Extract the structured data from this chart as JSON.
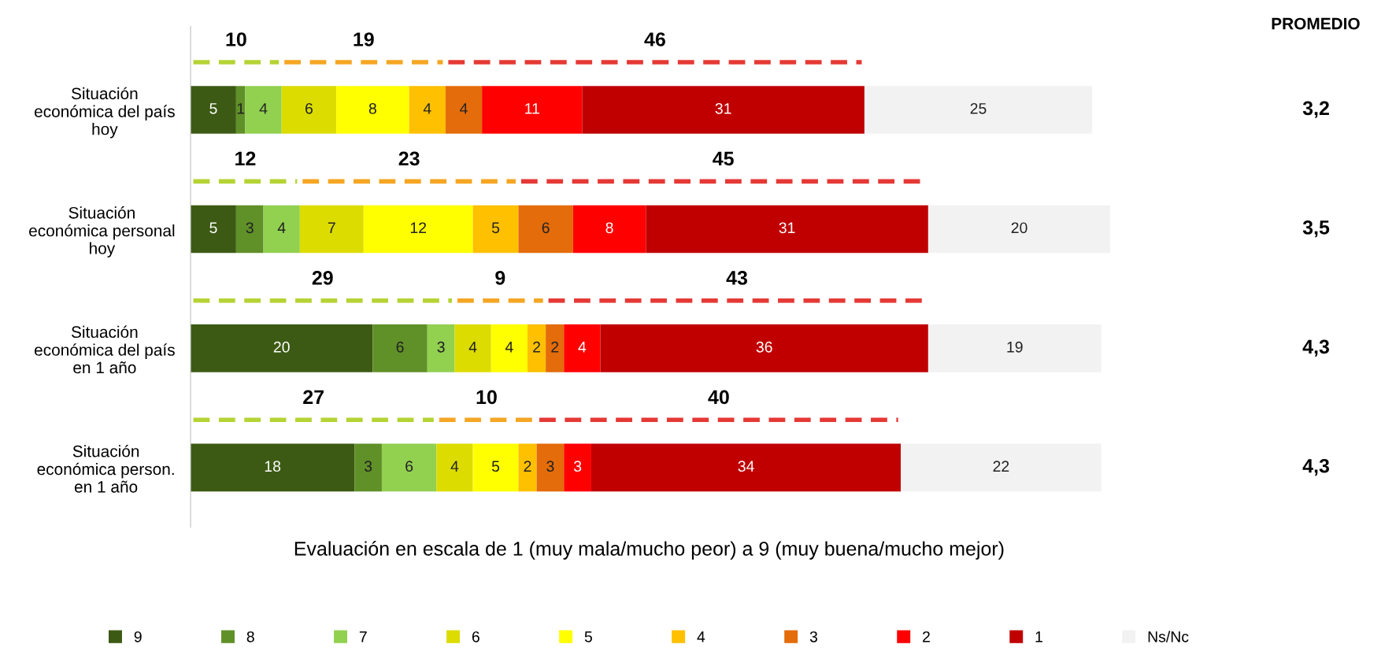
{
  "chart_data": {
    "type": "bar",
    "orientation": "horizontal",
    "stacked": true,
    "data_labels": true,
    "legend": "bottom",
    "grid": false,
    "xlabel": "Evaluación en escala de 1 (muy mala/mucho peor) a 9 (muy buena/mucho mejor)",
    "categories": [
      "Situación\neconómica del país\nhoy",
      "Situación\neconómica personal\nhoy",
      "Situación\neconómica del país\nen 1 año",
      "Situación\neconómica person.\nen 1 año"
    ],
    "series": [
      {
        "name": "9",
        "color": "#3c5a14",
        "values": [
          5,
          5,
          20,
          18
        ]
      },
      {
        "name": "8",
        "color": "#609028",
        "values": [
          1,
          3,
          6,
          3
        ]
      },
      {
        "name": "7",
        "color": "#92d050",
        "values": [
          4,
          4,
          3,
          6
        ]
      },
      {
        "name": "6",
        "color": "#dcdc00",
        "values": [
          6,
          7,
          4,
          4
        ]
      },
      {
        "name": "5",
        "color": "#ffff00",
        "values": [
          8,
          12,
          4,
          5
        ]
      },
      {
        "name": "4",
        "color": "#ffc000",
        "values": [
          4,
          5,
          2,
          2
        ]
      },
      {
        "name": "3",
        "color": "#e46c0a",
        "values": [
          4,
          6,
          2,
          3
        ]
      },
      {
        "name": "2",
        "color": "#ff0000",
        "values": [
          11,
          8,
          4,
          3
        ]
      },
      {
        "name": "1",
        "color": "#c00000",
        "values": [
          31,
          31,
          36,
          34
        ]
      },
      {
        "name": "Ns/Nc",
        "color": "#f2f2f2",
        "values": [
          25,
          20,
          19,
          22
        ]
      }
    ],
    "annotations": [
      "PROMEDIO",
      "3,2",
      "3,5",
      "4,3",
      "4,3",
      "10",
      "19",
      "46",
      "12",
      "23",
      "45",
      "29",
      "9",
      "43",
      "27",
      "10",
      "40"
    ]
  }
}
